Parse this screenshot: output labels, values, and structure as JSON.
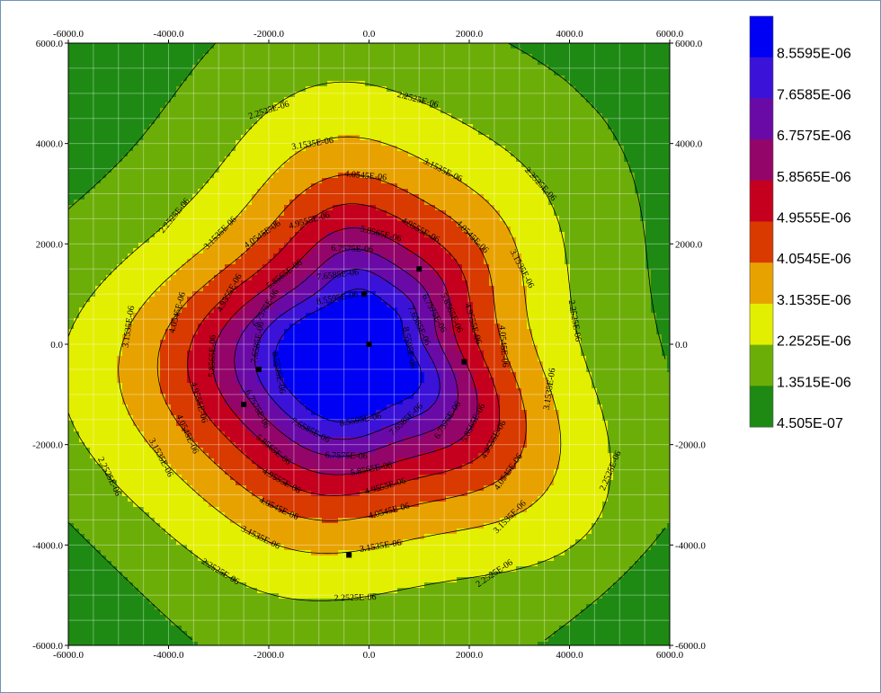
{
  "chart_data": {
    "type": "heatmap",
    "title": "",
    "xlabel": "",
    "ylabel": "",
    "xlim": [
      -6000,
      6000
    ],
    "ylim": [
      -6000,
      6000
    ],
    "x_ticks": [
      "-6000.0",
      "-4000.0",
      "-2000.0",
      "0.0",
      "2000.0",
      "4000.0",
      "6000.0"
    ],
    "y_ticks": [
      "6000.0",
      "4000.0",
      "2000.0",
      "0.0",
      "-2000.0",
      "-4000.0",
      "-6000.0"
    ],
    "grid": true,
    "legend_position": "right",
    "levels": [
      4.505e-07,
      1.3515e-06,
      2.2525e-06,
      3.1535e-06,
      4.0545e-06,
      4.9555e-06,
      5.8565e-06,
      6.7575e-06,
      7.6585e-06,
      8.5595e-06
    ],
    "legend_labels": [
      "8.5595E-06",
      "7.6585E-06",
      "6.7575E-06",
      "5.8565E-06",
      "4.9555E-06",
      "4.0545E-06",
      "3.1535E-06",
      "2.2525E-06",
      "1.3515E-06",
      "4.505E-07"
    ],
    "level_colors": [
      "#0000f5",
      "#3b12d8",
      "#6a0aa6",
      "#94056a",
      "#c4001e",
      "#d83a00",
      "#e8a200",
      "#e3ef00",
      "#6cae08",
      "#1e8a14"
    ],
    "contour_label_text": [
      "2.2525E-06",
      "3.1535E-06",
      "4.0545E-06",
      "4.9555E-06",
      "5.8565E-06",
      "6.7575E-06",
      "7.6585E-06",
      "8.5595E-06"
    ],
    "receptors": [
      {
        "x": -2200,
        "y": -500
      },
      {
        "x": -2500,
        "y": -1200
      },
      {
        "x": 1000,
        "y": 1500
      },
      {
        "x": 1900,
        "y": -350
      },
      {
        "x": -400,
        "y": -4200
      },
      {
        "x": -100,
        "y": 1000
      },
      {
        "x": 0,
        "y": 0
      }
    ]
  }
}
